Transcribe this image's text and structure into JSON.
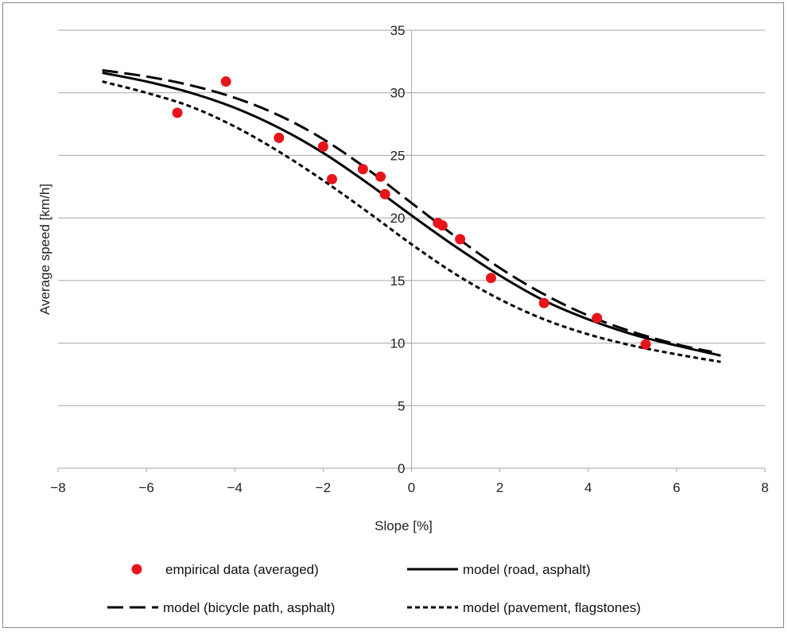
{
  "chart_data": {
    "type": "scatter",
    "xlabel": "Slope [%]",
    "ylabel": "Average speed [km/h]",
    "xlim": [
      -8,
      8
    ],
    "ylim": [
      0,
      35
    ],
    "xticks": [
      -8,
      -6,
      -4,
      -2,
      0,
      2,
      4,
      6,
      8
    ],
    "yticks": [
      0,
      5,
      10,
      15,
      20,
      25,
      30,
      35
    ],
    "xtick_labels": [
      "−8",
      "−6",
      "−4",
      "−2",
      "0",
      "2",
      "4",
      "6",
      "8"
    ],
    "ytick_labels": [
      "0",
      "5",
      "10",
      "15",
      "20",
      "25",
      "30",
      "35"
    ],
    "grid": "horizontal",
    "legend_position": "bottom",
    "series": [
      {
        "name": "empirical data (averaged)",
        "kind": "points",
        "color": "#e8141b",
        "points": [
          [
            -5.3,
            28.4
          ],
          [
            -4.2,
            30.9
          ],
          [
            -3.0,
            26.4
          ],
          [
            -2.0,
            25.7
          ],
          [
            -1.8,
            23.1
          ],
          [
            -1.1,
            23.9
          ],
          [
            -0.7,
            23.3
          ],
          [
            -0.6,
            21.9
          ],
          [
            0.6,
            19.6
          ],
          [
            0.7,
            19.4
          ],
          [
            1.1,
            18.3
          ],
          [
            1.8,
            15.2
          ],
          [
            3.0,
            13.2
          ],
          [
            4.2,
            12.0
          ],
          [
            5.3,
            9.9
          ]
        ]
      },
      {
        "name": "model (road, asphalt)",
        "kind": "line",
        "dash": "solid",
        "color": "#000000",
        "points": [
          [
            -7,
            31.6
          ],
          [
            -6,
            30.9
          ],
          [
            -5,
            30.0
          ],
          [
            -4,
            28.8
          ],
          [
            -3,
            27.2
          ],
          [
            -2,
            25.2
          ],
          [
            -1,
            22.8
          ],
          [
            0,
            20.2
          ],
          [
            1,
            17.7
          ],
          [
            2,
            15.4
          ],
          [
            3,
            13.4
          ],
          [
            4,
            11.9
          ],
          [
            5,
            10.7
          ],
          [
            6,
            9.8
          ],
          [
            7,
            9.0
          ]
        ]
      },
      {
        "name": "model (bicycle path, asphalt)",
        "kind": "line",
        "dash": "long-dash",
        "color": "#000000",
        "points": [
          [
            -7,
            31.8
          ],
          [
            -6,
            31.3
          ],
          [
            -5,
            30.6
          ],
          [
            -4,
            29.6
          ],
          [
            -3,
            28.2
          ],
          [
            -2,
            26.3
          ],
          [
            -1,
            23.9
          ],
          [
            0,
            21.2
          ],
          [
            1,
            18.5
          ],
          [
            2,
            16.0
          ],
          [
            3,
            13.9
          ],
          [
            4,
            12.2
          ],
          [
            5,
            10.9
          ],
          [
            6,
            9.9
          ],
          [
            6.8,
            9.3
          ]
        ]
      },
      {
        "name": "model (pavement, flagstones)",
        "kind": "line",
        "dash": "short-dash",
        "color": "#000000",
        "points": [
          [
            -7,
            30.9
          ],
          [
            -6,
            30.0
          ],
          [
            -5,
            28.9
          ],
          [
            -4,
            27.3
          ],
          [
            -3,
            25.3
          ],
          [
            -2,
            23.0
          ],
          [
            -1,
            20.5
          ],
          [
            0,
            17.9
          ],
          [
            1,
            15.5
          ],
          [
            2,
            13.5
          ],
          [
            3,
            11.9
          ],
          [
            4,
            10.7
          ],
          [
            5,
            9.8
          ],
          [
            6,
            9.1
          ],
          [
            7,
            8.5
          ]
        ]
      }
    ]
  }
}
